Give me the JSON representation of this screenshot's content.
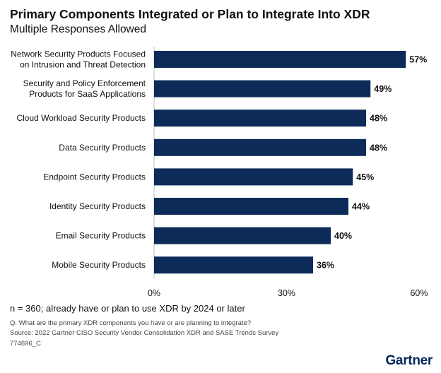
{
  "title": "Primary Components Integrated or Plan to Integrate Into XDR",
  "subtitle": "Multiple Responses Allowed",
  "footnote": "n = 360; already have or plan to use XDR by 2024 or later",
  "question": "Q. What are the primary XDR components you have or are planning to integrate?",
  "source": "Source: 2022 Gartner CISO Security Vendor Consolidation XDR and SASE Trends Survey",
  "code": "774696_C",
  "logo": "Gartner",
  "colors": {
    "bar": "#0d2b58",
    "text": "#111111",
    "logo": "#002856"
  },
  "chart_data": {
    "type": "bar",
    "orientation": "horizontal",
    "categories": [
      [
        "Network Security Products Focused",
        "on Intrusion and Threat Detection"
      ],
      [
        "Security and Policy Enforcement",
        "Products for SaaS Applications"
      ],
      [
        "Cloud Workload Security Products"
      ],
      [
        "Data Security Products"
      ],
      [
        "Endpoint Security Products"
      ],
      [
        "Identity Security Products"
      ],
      [
        "Email Security Products"
      ],
      [
        "Mobile Security Products"
      ]
    ],
    "values": [
      57,
      49,
      48,
      48,
      45,
      44,
      40,
      36
    ],
    "value_labels": [
      "57%",
      "49%",
      "48%",
      "48%",
      "45%",
      "44%",
      "40%",
      "36%"
    ],
    "xlim": [
      0,
      60
    ],
    "xticks": [
      0,
      30,
      60
    ],
    "xtick_labels": [
      "0%",
      "30%",
      "60%"
    ],
    "grid": false,
    "legend": "none"
  }
}
